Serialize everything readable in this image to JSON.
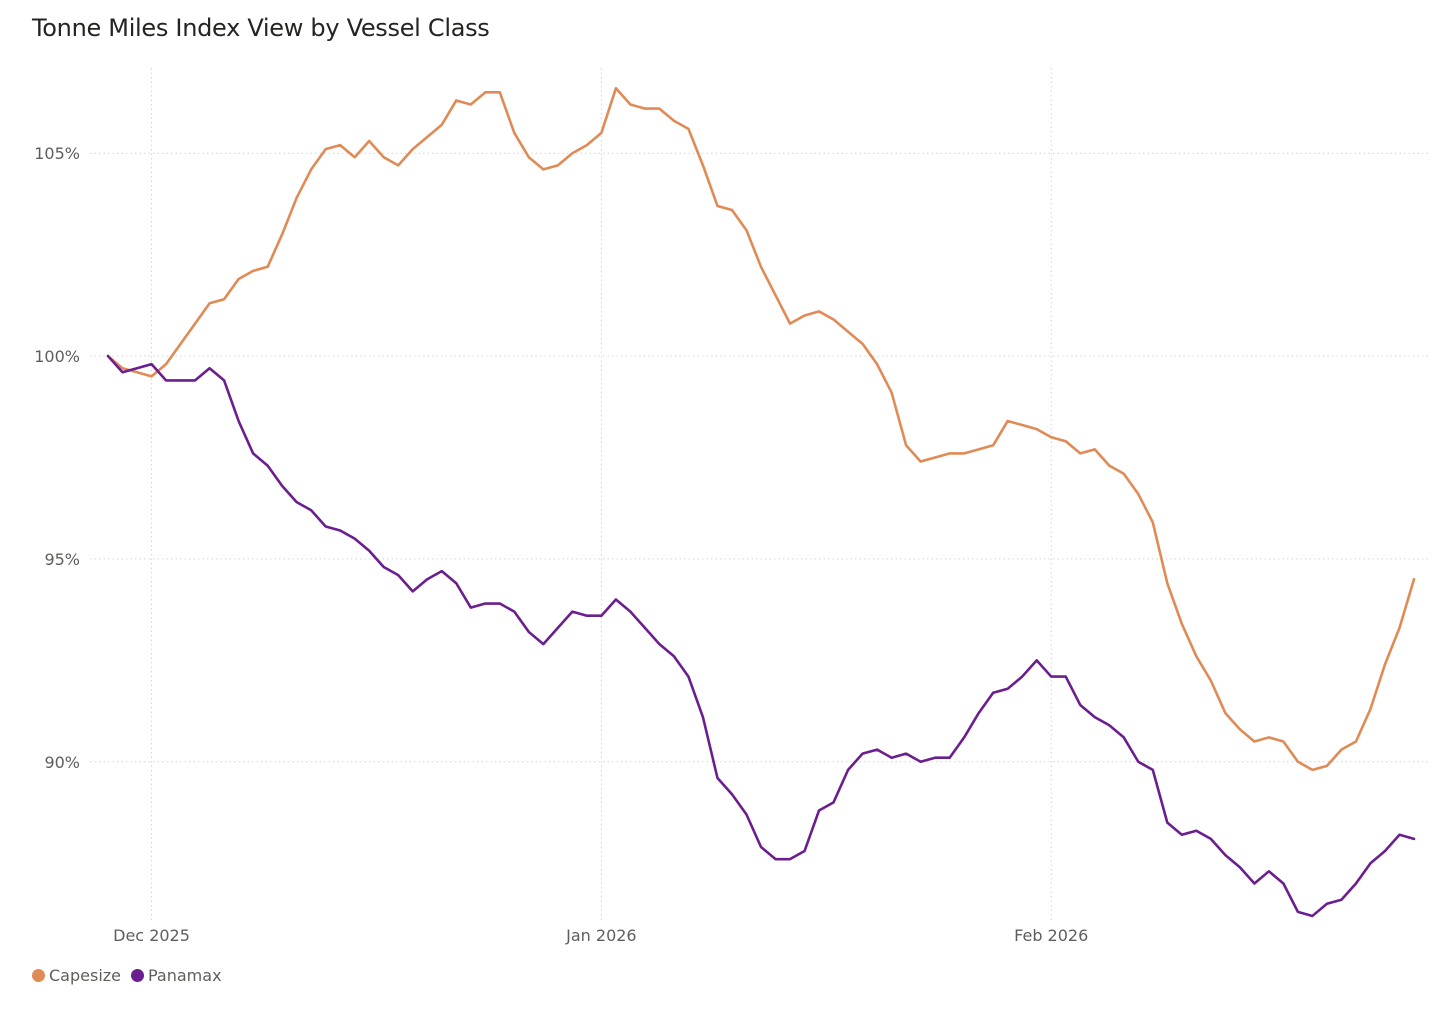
{
  "chart_data": {
    "type": "line",
    "title": "Tonne Miles Index View by Vessel Class",
    "xlabel": "",
    "ylabel": "",
    "ylim": [
      86.1,
      107.1
    ],
    "y_ticks": [
      90,
      95,
      100,
      105
    ],
    "y_tick_labels": [
      "90%",
      "95%",
      "100%",
      "105%"
    ],
    "x_tick_labels": [
      "Dec 2025",
      "Jan 2026",
      "Feb 2026"
    ],
    "x_tick_days": [
      3,
      34,
      65
    ],
    "x_range_days": [
      0,
      90
    ],
    "gridlines": true,
    "legend_position": "bottom-left",
    "series": [
      {
        "name": "Capesize",
        "color": "#E08A55",
        "values": [
          100.0,
          99.7,
          99.6,
          99.5,
          99.8,
          100.3,
          100.8,
          101.3,
          101.4,
          101.9,
          102.1,
          102.2,
          103.0,
          103.9,
          104.6,
          105.1,
          105.2,
          104.9,
          105.3,
          104.9,
          104.7,
          105.1,
          105.4,
          105.7,
          106.3,
          106.2,
          106.5,
          106.5,
          105.5,
          104.9,
          104.6,
          104.7,
          105.0,
          105.2,
          105.5,
          106.6,
          106.2,
          106.1,
          106.1,
          105.8,
          105.6,
          104.7,
          103.7,
          103.6,
          103.1,
          102.2,
          101.5,
          100.8,
          101.0,
          101.1,
          100.9,
          100.6,
          100.3,
          99.8,
          99.1,
          97.8,
          97.4,
          97.5,
          97.6,
          97.6,
          97.7,
          97.8,
          98.4,
          98.3,
          98.2,
          98.0,
          97.9,
          97.6,
          97.7,
          97.3,
          97.1,
          96.6,
          95.9,
          94.4,
          93.4,
          92.6,
          92.0,
          91.2,
          90.8,
          90.5,
          90.6,
          90.5,
          90.0,
          89.8,
          89.9,
          90.3,
          90.5,
          91.3,
          92.4,
          93.3,
          94.5
        ]
      },
      {
        "name": "Panamax",
        "color": "#6B1E8E",
        "values": [
          100.0,
          99.6,
          99.7,
          99.8,
          99.4,
          99.4,
          99.4,
          99.7,
          99.4,
          98.4,
          97.6,
          97.3,
          96.8,
          96.4,
          96.2,
          95.8,
          95.7,
          95.5,
          95.2,
          94.8,
          94.6,
          94.2,
          94.5,
          94.7,
          94.4,
          93.8,
          93.9,
          93.9,
          93.7,
          93.2,
          92.9,
          93.3,
          93.7,
          93.6,
          93.6,
          94.0,
          93.7,
          93.3,
          92.9,
          92.6,
          92.1,
          91.1,
          89.6,
          89.2,
          88.7,
          87.9,
          87.6,
          87.6,
          87.8,
          88.8,
          89.0,
          89.8,
          90.2,
          90.3,
          90.1,
          90.2,
          90.0,
          90.1,
          90.1,
          90.6,
          91.2,
          91.7,
          91.8,
          92.1,
          92.5,
          92.1,
          92.1,
          91.4,
          91.1,
          90.9,
          90.6,
          90.0,
          89.8,
          88.5,
          88.2,
          88.3,
          88.1,
          87.7,
          87.4,
          87.0,
          87.3,
          87.0,
          86.3,
          86.2,
          86.5,
          86.6,
          87.0,
          87.5,
          87.8,
          88.2,
          88.1
        ]
      }
    ]
  }
}
